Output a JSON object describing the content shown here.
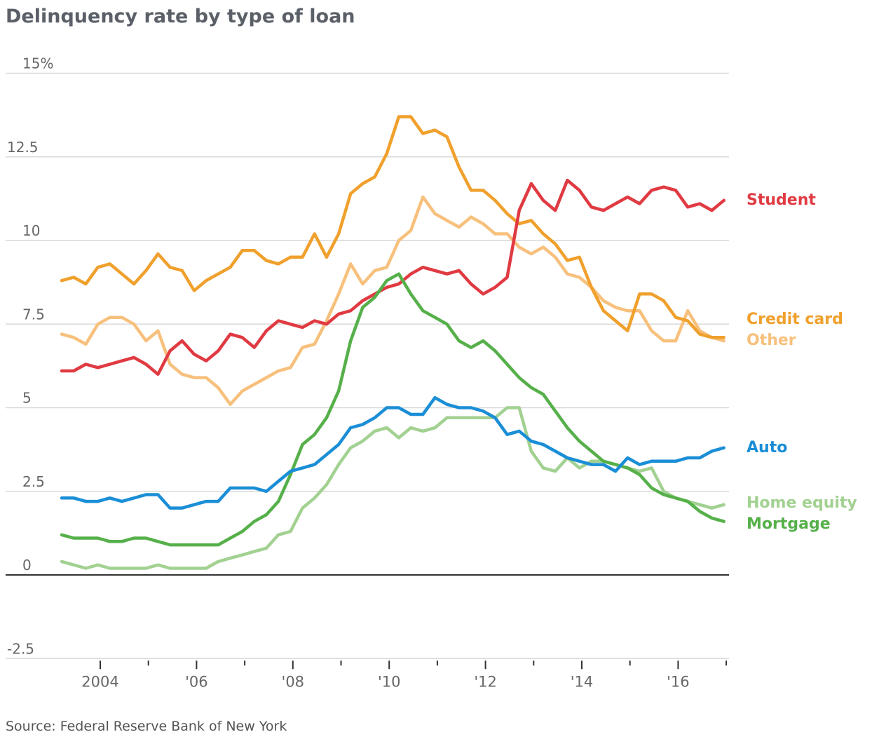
{
  "chart_data": {
    "type": "line",
    "title": "Delinquency rate by type of loan",
    "source": "Source: Federal Reserve Bank of New York",
    "xlabel": "",
    "ylabel": "",
    "ylim": [
      -2.5,
      15
    ],
    "xlim": [
      2003,
      2017
    ],
    "x_start": 2003.2,
    "x_step": 0.25,
    "y_ticks": [
      {
        "value": 15,
        "label": "15%"
      },
      {
        "value": 12.5,
        "label": "12.5"
      },
      {
        "value": 10,
        "label": "10"
      },
      {
        "value": 7.5,
        "label": "7.5"
      },
      {
        "value": 5,
        "label": "5"
      },
      {
        "value": 2.5,
        "label": "2.5"
      },
      {
        "value": 0,
        "label": "0"
      },
      {
        "value": -2.5,
        "label": "-2.5"
      }
    ],
    "x_ticks": [
      {
        "value": 2004,
        "label": "2004"
      },
      {
        "value": 2006,
        "label": "'06"
      },
      {
        "value": 2008,
        "label": "'08"
      },
      {
        "value": 2010,
        "label": "'10"
      },
      {
        "value": 2012,
        "label": "'12"
      },
      {
        "value": 2014,
        "label": "'14"
      },
      {
        "value": 2016,
        "label": "'16"
      }
    ],
    "x_minor_ticks": [
      2005,
      2007,
      2009,
      2011,
      2013,
      2015,
      2017
    ],
    "grid": true,
    "legend": "direct labels at right end of lines",
    "series": [
      {
        "name": "Other",
        "color": "#f7c07c",
        "values": [
          7.2,
          7.1,
          6.9,
          7.5,
          7.7,
          7.7,
          7.5,
          7.0,
          7.3,
          6.3,
          6.0,
          5.9,
          5.9,
          5.6,
          5.1,
          5.5,
          5.7,
          5.9,
          6.1,
          6.2,
          6.8,
          6.9,
          7.6,
          8.4,
          9.3,
          8.7,
          9.1,
          9.2,
          10.0,
          10.3,
          11.3,
          10.8,
          10.6,
          10.4,
          10.7,
          10.5,
          10.2,
          10.2,
          9.8,
          9.6,
          9.8,
          9.5,
          9.0,
          8.9,
          8.6,
          8.2,
          8.0,
          7.9,
          7.9,
          7.3,
          7.0,
          7.0,
          7.9,
          7.3,
          7.1,
          7.0
        ]
      },
      {
        "name": "Credit card",
        "color": "#f0a02c",
        "values": [
          8.8,
          8.9,
          8.7,
          9.2,
          9.3,
          9.0,
          8.7,
          9.1,
          9.6,
          9.2,
          9.1,
          8.5,
          8.8,
          9.0,
          9.2,
          9.7,
          9.7,
          9.4,
          9.3,
          9.5,
          9.5,
          10.2,
          9.5,
          10.2,
          11.4,
          11.7,
          11.9,
          12.6,
          13.7,
          13.7,
          13.2,
          13.3,
          13.1,
          12.2,
          11.5,
          11.5,
          11.2,
          10.8,
          10.5,
          10.6,
          10.2,
          9.9,
          9.4,
          9.5,
          8.6,
          7.9,
          7.6,
          7.3,
          8.4,
          8.4,
          8.2,
          7.7,
          7.6,
          7.2,
          7.1,
          7.1
        ]
      },
      {
        "name": "Student",
        "color": "#e03a42",
        "values": [
          6.1,
          6.1,
          6.3,
          6.2,
          6.3,
          6.4,
          6.5,
          6.3,
          6.0,
          6.7,
          7.0,
          6.6,
          6.4,
          6.7,
          7.2,
          7.1,
          6.8,
          7.3,
          7.6,
          7.5,
          7.4,
          7.6,
          7.5,
          7.8,
          7.9,
          8.2,
          8.4,
          8.6,
          8.7,
          9.0,
          9.2,
          9.1,
          9.0,
          9.1,
          8.7,
          8.4,
          8.6,
          8.9,
          10.9,
          11.7,
          11.2,
          10.9,
          11.8,
          11.5,
          11.0,
          10.9,
          11.1,
          11.3,
          11.1,
          11.5,
          11.6,
          11.5,
          11.0,
          11.1,
          10.9,
          11.2
        ]
      },
      {
        "name": "Home equity",
        "color": "#a2d191",
        "values": [
          0.4,
          0.3,
          0.2,
          0.3,
          0.2,
          0.2,
          0.2,
          0.2,
          0.3,
          0.2,
          0.2,
          0.2,
          0.2,
          0.4,
          0.5,
          0.6,
          0.7,
          0.8,
          1.2,
          1.3,
          2.0,
          2.3,
          2.7,
          3.3,
          3.8,
          4.0,
          4.3,
          4.4,
          4.1,
          4.4,
          4.3,
          4.4,
          4.7,
          4.7,
          4.7,
          4.7,
          4.7,
          5.0,
          5.0,
          3.7,
          3.2,
          3.1,
          3.5,
          3.2,
          3.4,
          3.4,
          3.3,
          3.2,
          3.1,
          3.2,
          2.5,
          2.3,
          2.2,
          2.1,
          2.0,
          2.1
        ]
      },
      {
        "name": "Mortgage",
        "color": "#56b04a",
        "values": [
          1.2,
          1.1,
          1.1,
          1.1,
          1.0,
          1.0,
          1.1,
          1.1,
          1.0,
          0.9,
          0.9,
          0.9,
          0.9,
          0.9,
          1.1,
          1.3,
          1.6,
          1.8,
          2.2,
          3.0,
          3.9,
          4.2,
          4.7,
          5.5,
          7.0,
          8.0,
          8.3,
          8.8,
          9.0,
          8.4,
          7.9,
          7.7,
          7.5,
          7.0,
          6.8,
          7.0,
          6.7,
          6.3,
          5.9,
          5.6,
          5.4,
          4.9,
          4.4,
          4.0,
          3.7,
          3.4,
          3.3,
          3.2,
          3.0,
          2.6,
          2.4,
          2.3,
          2.2,
          1.9,
          1.7,
          1.6
        ]
      },
      {
        "name": "Auto",
        "color": "#1a8ed6",
        "values": [
          2.3,
          2.3,
          2.2,
          2.2,
          2.3,
          2.2,
          2.3,
          2.4,
          2.4,
          2.0,
          2.0,
          2.1,
          2.2,
          2.2,
          2.6,
          2.6,
          2.6,
          2.5,
          2.8,
          3.1,
          3.2,
          3.3,
          3.6,
          3.9,
          4.4,
          4.5,
          4.7,
          5.0,
          5.0,
          4.8,
          4.8,
          5.3,
          5.1,
          5.0,
          5.0,
          4.9,
          4.7,
          4.2,
          4.3,
          4.0,
          3.9,
          3.7,
          3.5,
          3.4,
          3.3,
          3.3,
          3.1,
          3.5,
          3.3,
          3.4,
          3.4,
          3.4,
          3.5,
          3.5,
          3.7,
          3.8
        ]
      }
    ]
  }
}
